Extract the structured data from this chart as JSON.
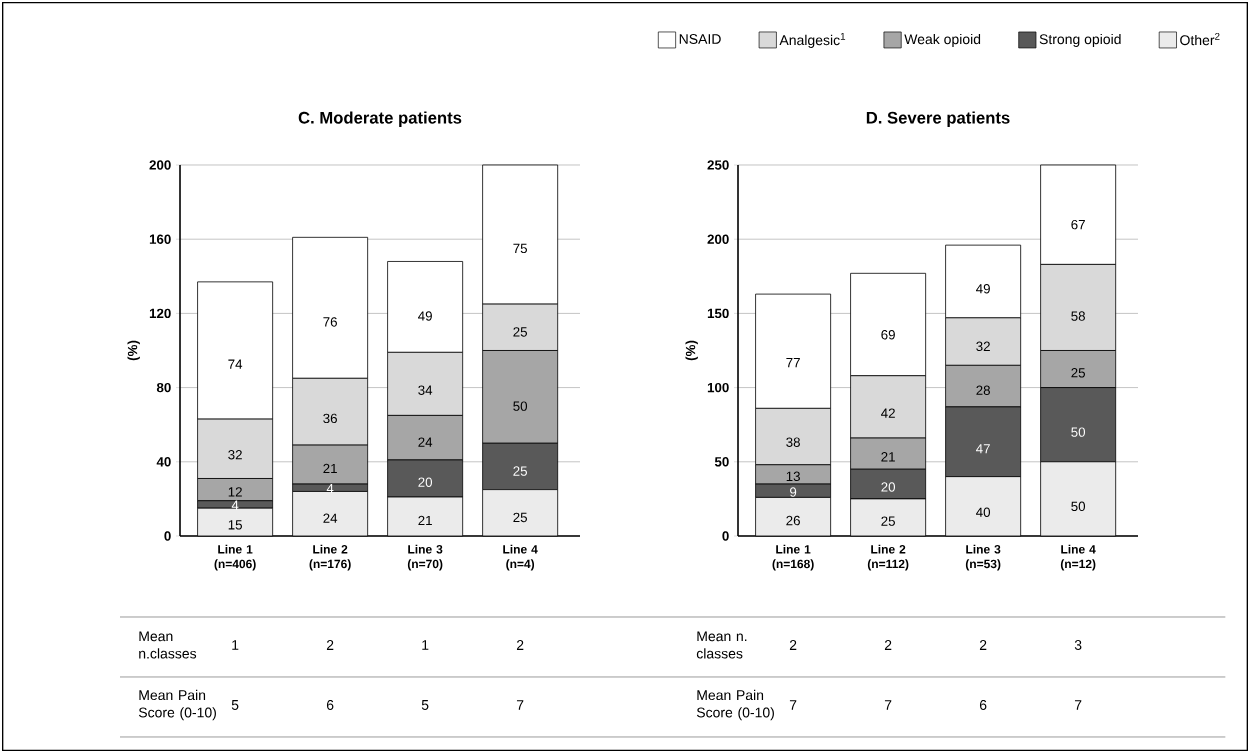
{
  "chart_data": [
    {
      "type": "bar",
      "stacked": true,
      "title": "C. Moderate patients",
      "ylabel": "(%)",
      "categories": [
        "Line 1 (n=406)",
        "Line 2 (n=176)",
        "Line 3 (n=70)",
        "Line 4 (n=4)"
      ],
      "series": [
        {
          "color": "#ebebeb",
          "values": [
            15,
            24,
            21,
            25
          ]
        },
        {
          "color": "#595959",
          "values": [
            4,
            4,
            20,
            25
          ]
        },
        {
          "color": "#a6a6a6",
          "values": [
            12,
            21,
            24,
            50
          ]
        },
        {
          "color": "#d9d9d9",
          "values": [
            32,
            36,
            34,
            25
          ]
        },
        {
          "color": "#ffffff",
          "values": [
            74,
            76,
            49,
            75
          ]
        }
      ],
      "ylim": [
        0,
        200
      ],
      "yticks": [
        0,
        40,
        80,
        120,
        160,
        200
      ],
      "grid": "y",
      "data_labels": true,
      "annotations": [
        "Mean n.classes",
        "1",
        "2",
        "1",
        "2",
        "Mean Pain Score (0-10)",
        "5",
        "6",
        "5",
        "7"
      ]
    },
    {
      "type": "bar",
      "stacked": true,
      "title": "D. Severe patients",
      "ylabel": "(%)",
      "categories": [
        "Line 1 (n=168)",
        "Line 2 (n=112)",
        "Line 3 (n=53)",
        "Line 4 (n=12)"
      ],
      "series": [
        {
          "name": "Other$^{2}$",
          "color": "#ebebeb",
          "values": [
            26,
            25,
            40,
            50
          ]
        },
        {
          "name": "Strong opioid",
          "color": "#595959",
          "values": [
            9,
            20,
            47,
            50
          ]
        },
        {
          "name": "Weak opioid",
          "color": "#a6a6a6",
          "values": [
            13,
            21,
            28,
            25
          ]
        },
        {
          "name": "Analgesic$^{1}$",
          "color": "#d9d9d9",
          "values": [
            38,
            42,
            32,
            58
          ]
        },
        {
          "name": "NSAID",
          "color": "#ffffff",
          "values": [
            77,
            69,
            49,
            67
          ]
        }
      ],
      "ylim": [
        0,
        250
      ],
      "yticks": [
        0,
        50,
        100,
        150,
        200,
        250
      ],
      "grid": "y",
      "data_labels": true,
      "legend": "top",
      "annotations": [
        "Mean n. classes",
        "2",
        "2",
        "2",
        "3",
        "Mean Pain Score (0-10)",
        "7",
        "7",
        "6",
        "7"
      ]
    }
  ]
}
